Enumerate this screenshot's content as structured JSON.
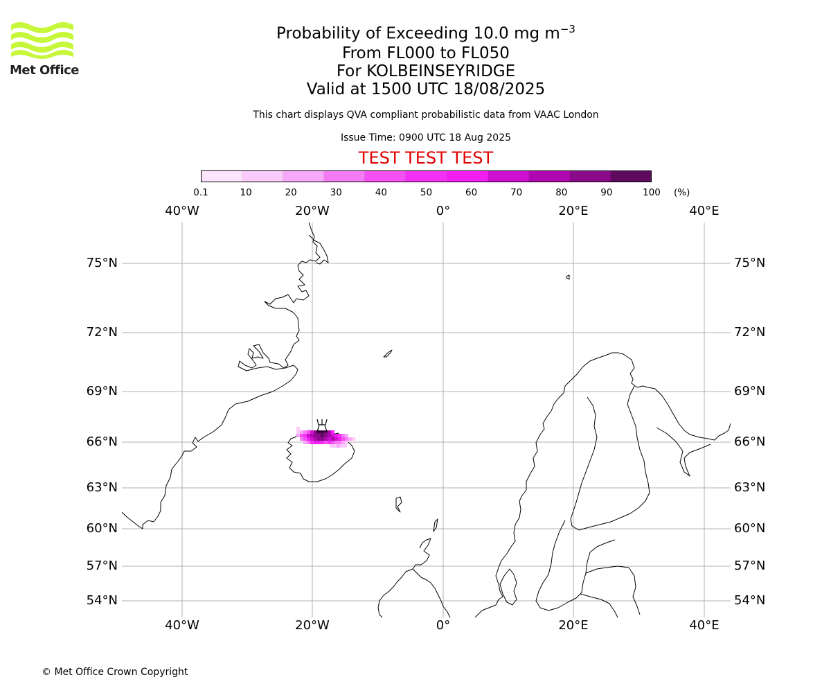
{
  "logo": {
    "text": "Met Office",
    "color": "#c6f73a"
  },
  "title": {
    "main_prefix": "Probability of Exceeding 10.0 mg m",
    "main_superscript": "−3",
    "line2": "From FL000 to FL050",
    "line3": "For KOLBEINSEYRIDGE",
    "line4": "Valid at 1500 UTC 18/08/2025"
  },
  "subtitle": "This chart displays QVA compliant probabilistic data from VAAC London",
  "issue_time": "Issue Time: 0900 UTC 18 Aug 2025",
  "test_banner": "TEST TEST TEST",
  "colorbar": {
    "unit": "(%)",
    "ticks": [
      "0.1",
      "10",
      "20",
      "30",
      "40",
      "50",
      "60",
      "70",
      "80",
      "90",
      "100"
    ],
    "colors": [
      "#fde6fd",
      "#fbcbfb",
      "#f8a8f8",
      "#f57af5",
      "#f450f4",
      "#f330f3",
      "#f21ef2",
      "#d010d0",
      "#b008b0",
      "#8a0a8a",
      "#5e0a5e"
    ]
  },
  "map": {
    "lon_labels": [
      "40°W",
      "20°W",
      "0°",
      "20°E",
      "40°E"
    ],
    "lon_values": [
      -40,
      -20,
      0,
      20,
      40
    ],
    "lat_labels": [
      "75°N",
      "72°N",
      "69°N",
      "66°N",
      "63°N",
      "60°N",
      "57°N",
      "54°N"
    ],
    "lat_values": [
      75,
      72,
      69,
      66,
      63,
      60,
      57,
      54
    ],
    "extent": {
      "lon_min": -49,
      "lon_max": 44,
      "lat_min": 52,
      "lat_max": 77
    },
    "volcano_marker": {
      "name": "volcano-icon",
      "lon": -18.5,
      "lat": 67.1
    }
  },
  "copyright": "© Met Office Crown Copyright"
}
